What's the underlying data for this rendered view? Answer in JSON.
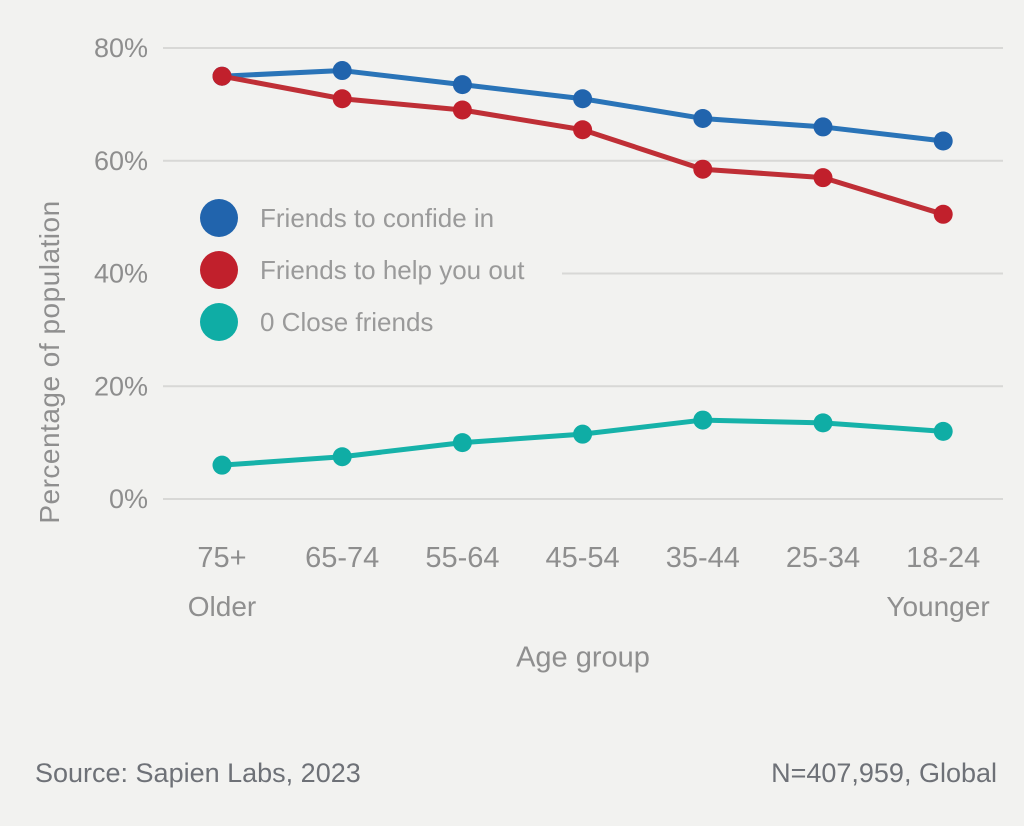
{
  "chart_data": {
    "type": "line",
    "title": "",
    "x_axis": {
      "label": "Age group",
      "categories": [
        "75+",
        "65-74",
        "55-64",
        "45-54",
        "35-44",
        "25-34",
        "18-24"
      ],
      "left_end_label": "Older",
      "right_end_label": "Younger"
    },
    "y_axis": {
      "label": "Percentage of population",
      "ticks": [
        {
          "value": 80,
          "label": "80%"
        },
        {
          "value": 60,
          "label": "60%"
        },
        {
          "value": 40,
          "label": "40%"
        },
        {
          "value": 20,
          "label": "20%"
        },
        {
          "value": 0,
          "label": "0%"
        }
      ],
      "range": [
        0,
        80
      ],
      "grid": true
    },
    "legend_position": "inside-upper-left",
    "series": [
      {
        "name": "Friends to confide in",
        "line_color": "#2a74b8",
        "dot_color": "#2164ad",
        "values": [
          75,
          76,
          73.5,
          71,
          67.5,
          66,
          63.5
        ]
      },
      {
        "name": "Friends to help you out",
        "line_color": "#bf2f36",
        "dot_color": "#c1202c",
        "values": [
          75,
          71,
          69,
          65.5,
          58.5,
          57,
          50.5
        ]
      },
      {
        "name": "0 Close friends",
        "line_color": "#16b2a9",
        "dot_color": "#0fada5",
        "values": [
          6,
          7.5,
          10,
          11.5,
          14,
          13.5,
          12
        ]
      }
    ]
  },
  "footer": {
    "source": "Source: Sapien Labs, 2023",
    "sample": "N=407,959, Global"
  }
}
